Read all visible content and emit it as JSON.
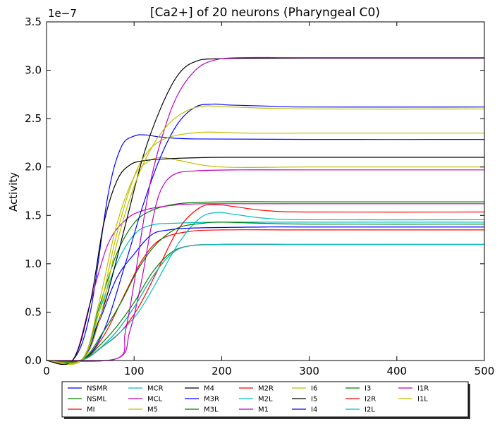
{
  "chart_data": {
    "type": "line",
    "title": "[Ca2+] of 20 neurons (Pharyngeal C0)",
    "ylabel": "Activity",
    "xlabel": "",
    "y_offset_label": "1e−7",
    "xlim": [
      0,
      500
    ],
    "ylim": [
      0,
      3.5
    ],
    "x_ticks": [
      0,
      100,
      200,
      300,
      400,
      500
    ],
    "x_tick_labels": [
      "0",
      "100",
      "200",
      "300",
      "400",
      "500"
    ],
    "y_ticks": [
      0,
      0.5,
      1.0,
      1.5,
      2.0,
      2.5,
      3.0,
      3.5
    ],
    "y_tick_labels": [
      "0.0",
      "0.5",
      "1.0",
      "1.5",
      "2.0",
      "2.5",
      "3.0",
      "3.5"
    ],
    "grid": false,
    "legend_position": "bottom",
    "series": [
      {
        "name": "NSMR",
        "color": "#0000ff",
        "points": [
          [
            0,
            0
          ],
          [
            30,
            0.005
          ],
          [
            50,
            0.5
          ],
          [
            70,
            1.7
          ],
          [
            85,
            2.2
          ],
          [
            100,
            2.32
          ],
          [
            115,
            2.33
          ],
          [
            130,
            2.31
          ],
          [
            170,
            2.29
          ],
          [
            300,
            2.285
          ],
          [
            500,
            2.285
          ]
        ]
      },
      {
        "name": "NSML",
        "color": "#008000",
        "points": [
          [
            0,
            0
          ],
          [
            40,
            0.005
          ],
          [
            60,
            0.55
          ],
          [
            80,
            1.1
          ],
          [
            100,
            1.42
          ],
          [
            120,
            1.55
          ],
          [
            150,
            1.62
          ],
          [
            200,
            1.64
          ],
          [
            300,
            1.64
          ],
          [
            500,
            1.64
          ]
        ]
      },
      {
        "name": "MI",
        "color": "#ff0000",
        "points": [
          [
            0,
            0
          ],
          [
            40,
            0.005
          ],
          [
            65,
            0.25
          ],
          [
            90,
            0.7
          ],
          [
            110,
            1.05
          ],
          [
            130,
            1.25
          ],
          [
            160,
            1.33
          ],
          [
            200,
            1.35
          ],
          [
            300,
            1.35
          ],
          [
            500,
            1.35
          ]
        ]
      },
      {
        "name": "MCR",
        "color": "#00bfbf",
        "points": [
          [
            0,
            0
          ],
          [
            40,
            0.005
          ],
          [
            60,
            0.5
          ],
          [
            80,
            1.0
          ],
          [
            100,
            1.3
          ],
          [
            120,
            1.4
          ],
          [
            150,
            1.42
          ],
          [
            200,
            1.43
          ],
          [
            300,
            1.43
          ],
          [
            500,
            1.43
          ]
        ]
      },
      {
        "name": "MCL",
        "color": "#bf00bf",
        "points": [
          [
            0,
            0
          ],
          [
            30,
            0.005
          ],
          [
            50,
            0.6
          ],
          [
            70,
            1.2
          ],
          [
            90,
            1.45
          ],
          [
            110,
            1.55
          ],
          [
            140,
            1.6
          ],
          [
            180,
            1.62
          ],
          [
            300,
            1.62
          ],
          [
            500,
            1.62
          ]
        ]
      },
      {
        "name": "M5",
        "color": "#bfbf00",
        "points": [
          [
            0,
            0
          ],
          [
            40,
            0.005
          ],
          [
            60,
            0.6
          ],
          [
            80,
            1.4
          ],
          [
            100,
            1.9
          ],
          [
            115,
            2.05
          ],
          [
            130,
            2.1
          ],
          [
            150,
            2.07
          ],
          [
            200,
            2.0
          ],
          [
            300,
            2.0
          ],
          [
            500,
            2.0
          ]
        ]
      },
      {
        "name": "M4",
        "color": "#000000",
        "points": [
          [
            0,
            0
          ],
          [
            40,
            0.005
          ],
          [
            55,
            0.3
          ],
          [
            70,
            0.7
          ],
          [
            90,
            1.4
          ],
          [
            110,
            2.1
          ],
          [
            130,
            2.6
          ],
          [
            150,
            2.95
          ],
          [
            170,
            3.09
          ],
          [
            200,
            3.12
          ],
          [
            300,
            3.125
          ],
          [
            500,
            3.125
          ]
        ]
      },
      {
        "name": "M3R",
        "color": "#0000ff",
        "points": [
          [
            0,
            0
          ],
          [
            40,
            0.005
          ],
          [
            65,
            0.3
          ],
          [
            90,
            1.0
          ],
          [
            110,
            1.6
          ],
          [
            130,
            2.1
          ],
          [
            150,
            2.45
          ],
          [
            170,
            2.62
          ],
          [
            190,
            2.65
          ],
          [
            210,
            2.64
          ],
          [
            250,
            2.63
          ],
          [
            300,
            2.62
          ],
          [
            500,
            2.62
          ]
        ]
      },
      {
        "name": "M3L",
        "color": "#008000",
        "points": [
          [
            0,
            0
          ],
          [
            40,
            0.005
          ],
          [
            60,
            0.15
          ],
          [
            80,
            0.35
          ],
          [
            100,
            0.6
          ],
          [
            120,
            0.9
          ],
          [
            140,
            1.1
          ],
          [
            160,
            1.18
          ],
          [
            200,
            1.2
          ],
          [
            300,
            1.2
          ],
          [
            500,
            1.2
          ]
        ]
      },
      {
        "name": "M2R",
        "color": "#ff0000",
        "points": [
          [
            0,
            0
          ],
          [
            40,
            0.005
          ],
          [
            65,
            0.15
          ],
          [
            85,
            0.3
          ],
          [
            105,
            0.55
          ],
          [
            125,
            0.9
          ],
          [
            150,
            1.35
          ],
          [
            175,
            1.58
          ],
          [
            195,
            1.61
          ],
          [
            215,
            1.59
          ],
          [
            250,
            1.55
          ],
          [
            300,
            1.535
          ],
          [
            500,
            1.535
          ]
        ]
      },
      {
        "name": "M2L",
        "color": "#00bfbf",
        "points": [
          [
            0,
            0
          ],
          [
            40,
            0.005
          ],
          [
            65,
            0.15
          ],
          [
            85,
            0.3
          ],
          [
            105,
            0.5
          ],
          [
            125,
            0.8
          ],
          [
            150,
            1.2
          ],
          [
            175,
            1.47
          ],
          [
            195,
            1.53
          ],
          [
            215,
            1.51
          ],
          [
            250,
            1.47
          ],
          [
            300,
            1.455
          ],
          [
            500,
            1.455
          ]
        ]
      },
      {
        "name": "M1",
        "color": "#bf00bf",
        "points": [
          [
            0,
            0
          ],
          [
            80,
            0.02
          ],
          [
            95,
            0.3
          ],
          [
            108,
            0.8
          ],
          [
            120,
            1.4
          ],
          [
            130,
            1.75
          ],
          [
            145,
            1.92
          ],
          [
            170,
            1.96
          ],
          [
            220,
            1.97
          ],
          [
            300,
            1.97
          ],
          [
            500,
            1.97
          ]
        ]
      },
      {
        "name": "I6",
        "color": "#bfbf00",
        "points": [
          [
            0,
            0
          ],
          [
            40,
            0.005
          ],
          [
            60,
            0.5
          ],
          [
            80,
            1.3
          ],
          [
            100,
            1.9
          ],
          [
            115,
            2.15
          ],
          [
            130,
            2.27
          ],
          [
            150,
            2.33
          ],
          [
            180,
            2.36
          ],
          [
            230,
            2.35
          ],
          [
            300,
            2.35
          ],
          [
            500,
            2.35
          ]
        ]
      },
      {
        "name": "I5",
        "color": "#000000",
        "points": [
          [
            0,
            0
          ],
          [
            30,
            0.005
          ],
          [
            50,
            0.6
          ],
          [
            65,
            1.4
          ],
          [
            80,
            1.85
          ],
          [
            95,
            2.02
          ],
          [
            115,
            2.07
          ],
          [
            150,
            2.09
          ],
          [
            200,
            2.1
          ],
          [
            300,
            2.1
          ],
          [
            500,
            2.1
          ]
        ]
      },
      {
        "name": "I4",
        "color": "#0000ff",
        "points": [
          [
            0,
            0
          ],
          [
            40,
            0.005
          ],
          [
            60,
            0.4
          ],
          [
            80,
            0.85
          ],
          [
            100,
            1.1
          ],
          [
            120,
            1.3
          ],
          [
            140,
            1.35
          ],
          [
            170,
            1.37
          ],
          [
            250,
            1.38
          ],
          [
            300,
            1.38
          ],
          [
            500,
            1.38
          ]
        ]
      },
      {
        "name": "I3",
        "color": "#008000",
        "points": [
          [
            0,
            0
          ],
          [
            40,
            0.005
          ],
          [
            65,
            0.3
          ],
          [
            85,
            0.6
          ],
          [
            105,
            0.95
          ],
          [
            125,
            1.2
          ],
          [
            150,
            1.37
          ],
          [
            180,
            1.42
          ],
          [
            200,
            1.43
          ],
          [
            240,
            1.42
          ],
          [
            300,
            1.41
          ],
          [
            500,
            1.41
          ]
        ]
      },
      {
        "name": "I2R",
        "color": "#ff0000",
        "points": [
          [
            0,
            0
          ],
          [
            40,
            0.005
          ],
          [
            60,
            0.12
          ],
          [
            80,
            0.3
          ],
          [
            100,
            0.55
          ],
          [
            120,
            0.85
          ],
          [
            140,
            1.08
          ],
          [
            160,
            1.18
          ],
          [
            200,
            1.2
          ],
          [
            300,
            1.2
          ],
          [
            500,
            1.2
          ]
        ]
      },
      {
        "name": "I2L",
        "color": "#00bfbf",
        "points": [
          [
            0,
            0
          ],
          [
            40,
            0.005
          ],
          [
            60,
            0.12
          ],
          [
            80,
            0.3
          ],
          [
            100,
            0.55
          ],
          [
            120,
            0.85
          ],
          [
            140,
            1.08
          ],
          [
            160,
            1.18
          ],
          [
            200,
            1.2
          ],
          [
            300,
            1.2
          ],
          [
            500,
            1.2
          ]
        ]
      },
      {
        "name": "I1R",
        "color": "#bf00bf",
        "points": [
          [
            0,
            0
          ],
          [
            80,
            0.02
          ],
          [
            90,
            0.3
          ],
          [
            100,
            0.8
          ],
          [
            110,
            1.4
          ],
          [
            120,
            1.9
          ],
          [
            135,
            2.4
          ],
          [
            150,
            2.75
          ],
          [
            170,
            3.0
          ],
          [
            190,
            3.1
          ],
          [
            220,
            3.13
          ],
          [
            300,
            3.13
          ],
          [
            500,
            3.13
          ]
        ]
      },
      {
        "name": "I1L",
        "color": "#bfbf00",
        "points": [
          [
            0,
            0
          ],
          [
            40,
            0.005
          ],
          [
            60,
            0.4
          ],
          [
            80,
            1.2
          ],
          [
            100,
            1.8
          ],
          [
            120,
            2.2
          ],
          [
            140,
            2.45
          ],
          [
            160,
            2.58
          ],
          [
            180,
            2.63
          ],
          [
            210,
            2.62
          ],
          [
            300,
            2.6
          ],
          [
            500,
            2.6
          ]
        ]
      }
    ]
  }
}
